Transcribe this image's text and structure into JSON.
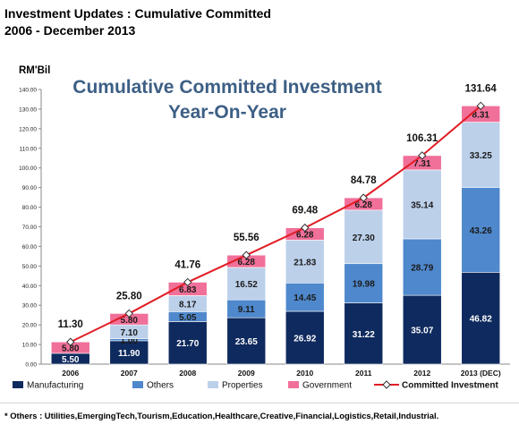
{
  "header": {
    "line1": "Investment Updates : Cumulative Committed",
    "line2": "2006 - December 2013"
  },
  "footnote": "* Others :  Utilities,EmergingTech,Tourism,Education,Healthcare,Creative,Financial,Logistics,Retail,Industrial.",
  "colors": {
    "manufacturing": "#0f2a5e",
    "others": "#4f88cc",
    "properties": "#bcd0ea",
    "government": "#f07099",
    "line": "#e11c24",
    "marker": "#ffffff"
  },
  "chart_data": {
    "type": "bar",
    "stacked": true,
    "title": "Cumulative Committed Investment",
    "subtitle": "Year-On-Year",
    "ylabel": "RM'Bil",
    "ylim": [
      0,
      140
    ],
    "yticks": [
      "0.00",
      "10.00",
      "20.00",
      "30.00",
      "40.00",
      "50.00",
      "60.00",
      "70.00",
      "80.00",
      "90.00",
      "100.00",
      "110.00",
      "120.00",
      "130.00",
      "140.00"
    ],
    "categories": [
      "2006",
      "2007",
      "2008",
      "2009",
      "2010",
      "2011",
      "2012",
      "2013 (DEC)"
    ],
    "series": [
      {
        "name": "Manufacturing",
        "values": [
          5.5,
          11.9,
          21.7,
          23.65,
          26.92,
          31.22,
          35.07,
          46.82
        ],
        "labels": [
          "5.50",
          "11.90",
          "21.70",
          "23.65",
          "26.92",
          "31.22",
          "35.07",
          "46.82"
        ]
      },
      {
        "name": "Others",
        "values": [
          0,
          1.0,
          5.05,
          9.11,
          14.45,
          19.98,
          28.79,
          43.26
        ],
        "labels": [
          "",
          "1.00",
          "5.05",
          "9.11",
          "14.45",
          "19.98",
          "28.79",
          "43.26"
        ]
      },
      {
        "name": "Properties",
        "values": [
          0,
          7.1,
          8.17,
          16.52,
          21.83,
          27.3,
          35.14,
          33.25
        ],
        "labels": [
          "",
          "7.10",
          "8.17",
          "16.52",
          "21.83",
          "27.30",
          "35.14",
          "33.25"
        ]
      },
      {
        "name": "Government",
        "values": [
          5.8,
          5.8,
          6.83,
          6.28,
          6.28,
          6.28,
          7.31,
          8.31
        ],
        "labels": [
          "5.80",
          "5.80",
          "6.83",
          "6.28",
          "6.28",
          "6.28",
          "7.31",
          "8.31"
        ]
      }
    ],
    "line": {
      "name": "Committed Investment",
      "values": [
        11.3,
        25.8,
        41.76,
        55.56,
        69.48,
        84.78,
        106.31,
        131.64
      ],
      "labels": [
        "11.30",
        "25.80",
        "41.76",
        "55.56",
        "69.48",
        "84.78",
        "106.31",
        "131.64"
      ]
    },
    "legend_position": "bottom",
    "grid": false
  }
}
